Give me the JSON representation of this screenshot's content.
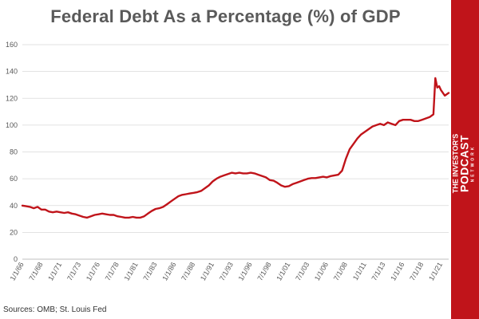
{
  "title": "Federal Debt As a Percentage (%) of GDP",
  "source": "Sources: OMB; St. Louis Fed",
  "brand": {
    "line1": "THE INVESTOR'S",
    "line2": "PODCAST",
    "line3": "NETWORK"
  },
  "colors": {
    "line": "#c0141a",
    "grid": "#d9d9d9",
    "brand": "#c0141a"
  },
  "chart_data": {
    "type": "line",
    "title": "Federal Debt As a Percentage (%) of GDP",
    "xlabel": "",
    "ylabel": "",
    "ylim": [
      0,
      160
    ],
    "yticks": [
      "0",
      "20",
      "40",
      "60",
      "80",
      "100",
      "120",
      "140",
      "160"
    ],
    "xtick_labels": [
      "1/1/66",
      "7/1/68",
      "1/1/71",
      "7/1/73",
      "1/1/76",
      "7/1/78",
      "1/1/81",
      "7/1/83",
      "1/1/86",
      "7/1/88",
      "1/1/91",
      "7/1/93",
      "1/1/96",
      "7/1/98",
      "1/1/01",
      "7/1/03",
      "1/1/06",
      "7/1/08",
      "1/1/11",
      "7/1/13",
      "1/1/16",
      "7/1/18",
      "1/1/21"
    ],
    "grid": true,
    "series": [
      {
        "x": [
          1966.0,
          1966.5,
          1967.0,
          1967.5,
          1968.0,
          1968.5,
          1969.0,
          1969.5,
          1970.0,
          1970.5,
          1971.0,
          1971.5,
          1972.0,
          1972.5,
          1973.0,
          1973.5,
          1974.0,
          1974.5,
          1975.0,
          1975.5,
          1976.0,
          1976.5,
          1977.0,
          1977.5,
          1978.0,
          1978.5,
          1979.0,
          1979.5,
          1980.0,
          1980.5,
          1981.0,
          1981.5,
          1982.0,
          1982.5,
          1983.0,
          1983.5,
          1984.0,
          1984.5,
          1985.0,
          1985.5,
          1986.0,
          1986.5,
          1987.0,
          1987.5,
          1988.0,
          1988.5,
          1989.0,
          1989.5,
          1990.0,
          1990.5,
          1991.0,
          1991.5,
          1992.0,
          1992.5,
          1993.0,
          1993.5,
          1994.0,
          1994.5,
          1995.0,
          1995.5,
          1996.0,
          1996.5,
          1997.0,
          1997.5,
          1998.0,
          1998.5,
          1999.0,
          1999.5,
          2000.0,
          2000.5,
          2001.0,
          2001.5,
          2002.0,
          2002.5,
          2003.0,
          2003.5,
          2004.0,
          2004.5,
          2005.0,
          2005.5,
          2006.0,
          2006.5,
          2007.0,
          2007.5,
          2008.0,
          2008.5,
          2009.0,
          2009.5,
          2010.0,
          2010.5,
          2011.0,
          2011.5,
          2012.0,
          2012.5,
          2013.0,
          2013.5,
          2014.0,
          2014.5,
          2015.0,
          2015.5,
          2016.0,
          2016.5,
          2017.0,
          2017.5,
          2018.0,
          2018.5,
          2019.0,
          2019.5,
          2020.0,
          2020.25,
          2020.5,
          2020.75,
          2021.0,
          2021.5,
          2022.0
        ],
        "values": [
          40,
          39.5,
          39,
          38,
          39,
          37,
          37,
          35.5,
          35,
          35.5,
          35,
          34.5,
          35,
          34,
          33.5,
          32.5,
          31.5,
          31,
          32,
          33,
          33.5,
          34,
          33.5,
          33,
          33,
          32,
          31.5,
          31,
          31,
          31.5,
          31,
          31,
          32,
          34,
          36,
          37.5,
          38,
          39,
          41,
          43,
          45,
          47,
          48,
          48.5,
          49,
          49.5,
          50,
          51,
          53,
          55,
          58,
          60,
          61.5,
          62.5,
          63.5,
          64.5,
          64,
          64.5,
          64,
          64,
          64.5,
          64,
          63,
          62,
          61,
          59,
          58.5,
          57,
          55,
          54,
          54.5,
          56,
          57,
          58,
          59,
          60,
          60.5,
          60.5,
          61,
          61.5,
          61,
          62,
          62.5,
          63,
          66,
          75,
          82,
          86,
          90,
          93,
          95,
          97,
          99,
          100,
          101,
          100,
          102,
          101,
          100,
          103,
          104,
          104,
          104,
          103,
          103,
          104,
          105,
          106,
          108,
          135,
          128,
          129,
          126,
          122,
          124
        ]
      }
    ]
  }
}
